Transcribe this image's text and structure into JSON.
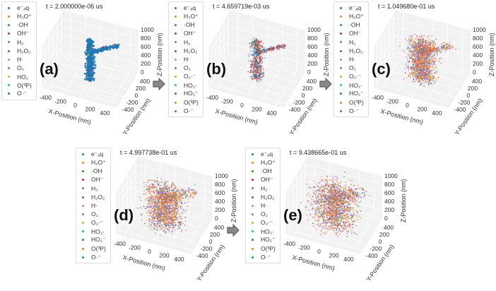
{
  "chart_data": [
    {
      "type": "scatter",
      "panel_label": "(a)",
      "title": "t = 2.000000e-06 us",
      "spread": 0.0,
      "legend": [
        "e⁻ₐq",
        "H₃O⁺",
        "·OH",
        "OH⁻",
        "H₂",
        "H₂O₂",
        "H·",
        "O₂",
        "HO₂",
        "O(³P)",
        "O·⁻"
      ],
      "dominant_species": [
        "e⁻ₐq"
      ]
    },
    {
      "type": "scatter",
      "panel_label": "(b)",
      "title": "t = 4.659719e-03 us",
      "spread": 0.15,
      "legend": [
        "e⁻ₐq",
        "H₃O⁺",
        "·OH",
        "OH⁻",
        "H₂",
        "H₂O₂",
        "H·",
        "O₂",
        "O₂·⁻",
        "HO₂·",
        "HO₂⁻",
        "O(³P)",
        "O·⁻"
      ],
      "dominant_species": [
        "OH⁻",
        "e⁻ₐq"
      ]
    },
    {
      "type": "scatter",
      "panel_label": "(c)",
      "title": "t = 1.049680e-01 us",
      "spread": 0.55,
      "legend": [
        "e⁻ₐq",
        "H₃O⁺",
        "·OH",
        "OH⁻",
        "H₂",
        "H₂O₂",
        "H·",
        "O₂",
        "O₂·⁻",
        "HO₂·",
        "HO₂⁻",
        "O(³P)",
        "O·⁻"
      ],
      "dominant_species": [
        "H₃O⁺",
        "H₂"
      ]
    },
    {
      "type": "scatter",
      "panel_label": "(d)",
      "title": "t = 4.997738e-01 us",
      "spread": 0.8,
      "legend": [
        "e⁻ₐq",
        "H₃O⁺",
        "·OH",
        "OH⁻",
        "H₂",
        "H₂O₂",
        "H·",
        "O₂",
        "O₂·⁻",
        "HO₂·",
        "HO₂⁻",
        "O(³P)",
        "O·⁻"
      ],
      "dominant_species": [
        "H₂",
        "H₃O⁺"
      ]
    },
    {
      "type": "scatter",
      "panel_label": "(e)",
      "title": "t = 9.438665e-01 us",
      "spread": 1.0,
      "legend": [
        "e⁻ₐq",
        "H₃O⁺",
        "·OH",
        "OH⁻",
        "H₂",
        "H₂O₂",
        "H·",
        "O₂",
        "O₂·⁻",
        "HO₂·",
        "HO₂⁻",
        "O(³P)",
        "O·⁻"
      ],
      "dominant_species": [
        "H₂",
        "H₃O⁺"
      ]
    }
  ],
  "axes": {
    "xlabel": "X-Position (nm)",
    "ylabel": "Y-Position (nm)",
    "zlabel": "Z-Position (nm)",
    "xticks": [
      -400,
      -200,
      0,
      200,
      400
    ],
    "yticks": [
      -400,
      -200,
      0,
      200,
      400
    ],
    "zticks": [
      0,
      200,
      400,
      600,
      800,
      1000
    ],
    "xlim": [
      -500,
      500
    ],
    "ylim": [
      -500,
      500
    ],
    "zlim": [
      0,
      1000
    ]
  },
  "colors": [
    "#1f77b4",
    "#ff7f0e",
    "#2ca02c",
    "#d62728",
    "#9467bd",
    "#8c564b",
    "#e377c2",
    "#7f7f7f",
    "#bcbd22",
    "#17becf"
  ]
}
